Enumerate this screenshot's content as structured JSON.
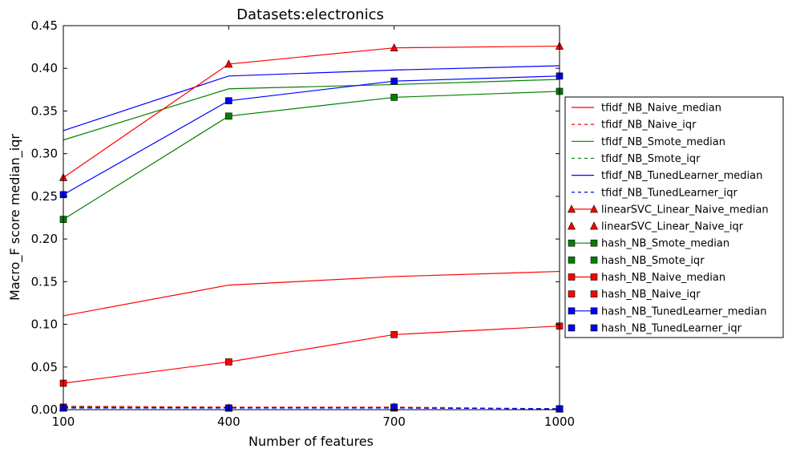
{
  "chart_data": {
    "type": "line",
    "title": "Datasets:electronics",
    "xlabel": "Number of features",
    "ylabel": "Macro_F score median_iqr",
    "x": [
      100,
      400,
      700,
      1000
    ],
    "xlim": [
      100,
      1000
    ],
    "ylim": [
      0,
      0.45
    ],
    "xticks": [
      "100",
      "400",
      "700",
      "1000"
    ],
    "yticks": [
      "0.00",
      "0.05",
      "0.10",
      "0.15",
      "0.20",
      "0.25",
      "0.30",
      "0.35",
      "0.40",
      "0.45"
    ],
    "grid": false,
    "legend_position": "outside-right",
    "series": [
      {
        "name": "tfidf_NB_Naive_median",
        "color": "#ff0000",
        "line": "solid",
        "marker": "none",
        "values": [
          0.11,
          0.146,
          0.156,
          0.162
        ]
      },
      {
        "name": "tfidf_NB_Naive_iqr",
        "color": "#ff0000",
        "line": "dashed",
        "marker": "none",
        "values": [
          0.004,
          0.003,
          0.003,
          0.001
        ]
      },
      {
        "name": "tfidf_NB_Smote_median",
        "color": "#008000",
        "line": "solid",
        "marker": "none",
        "values": [
          0.316,
          0.376,
          0.381,
          0.387
        ]
      },
      {
        "name": "tfidf_NB_Smote_iqr",
        "color": "#008000",
        "line": "dashed",
        "marker": "none",
        "values": [
          0.003,
          0.002,
          0.002,
          0.001
        ]
      },
      {
        "name": "tfidf_NB_TunedLearner_median",
        "color": "#0000ff",
        "line": "solid",
        "marker": "none",
        "values": [
          0.327,
          0.391,
          0.398,
          0.403
        ]
      },
      {
        "name": "tfidf_NB_TunedLearner_iqr",
        "color": "#0000ff",
        "line": "dashed",
        "marker": "none",
        "values": [
          0.002,
          0.002,
          0.002,
          0.001
        ]
      },
      {
        "name": "linearSVC_Linear_Naive_median",
        "color": "#ff0000",
        "line": "solid",
        "marker": "triangle",
        "values": [
          0.272,
          0.405,
          0.424,
          0.426
        ]
      },
      {
        "name": "linearSVC_Linear_Naive_iqr",
        "color": "#ff0000",
        "line": "none",
        "marker": "triangle",
        "values": [
          0.002,
          0.002,
          0.003,
          0.001
        ]
      },
      {
        "name": "hash_NB_Smote_median",
        "color": "#008000",
        "line": "solid",
        "marker": "square",
        "values": [
          0.223,
          0.344,
          0.366,
          0.373
        ]
      },
      {
        "name": "hash_NB_Smote_iqr",
        "color": "#008000",
        "line": "none",
        "marker": "square",
        "values": [
          0.002,
          0.002,
          0.002,
          0.001
        ]
      },
      {
        "name": "hash_NB_Naive_median",
        "color": "#ff0000",
        "line": "solid",
        "marker": "square",
        "values": [
          0.031,
          0.056,
          0.088,
          0.098
        ]
      },
      {
        "name": "hash_NB_Naive_iqr",
        "color": "#ff0000",
        "line": "none",
        "marker": "square",
        "values": [
          0.003,
          0.002,
          0.002,
          0.001
        ]
      },
      {
        "name": "hash_NB_TunedLearner_median",
        "color": "#0000ff",
        "line": "solid",
        "marker": "square",
        "values": [
          0.252,
          0.362,
          0.385,
          0.391
        ]
      },
      {
        "name": "hash_NB_TunedLearner_iqr",
        "color": "#0000ff",
        "line": "none",
        "marker": "square",
        "values": [
          0.002,
          0.002,
          0.003,
          0.001
        ]
      }
    ]
  }
}
